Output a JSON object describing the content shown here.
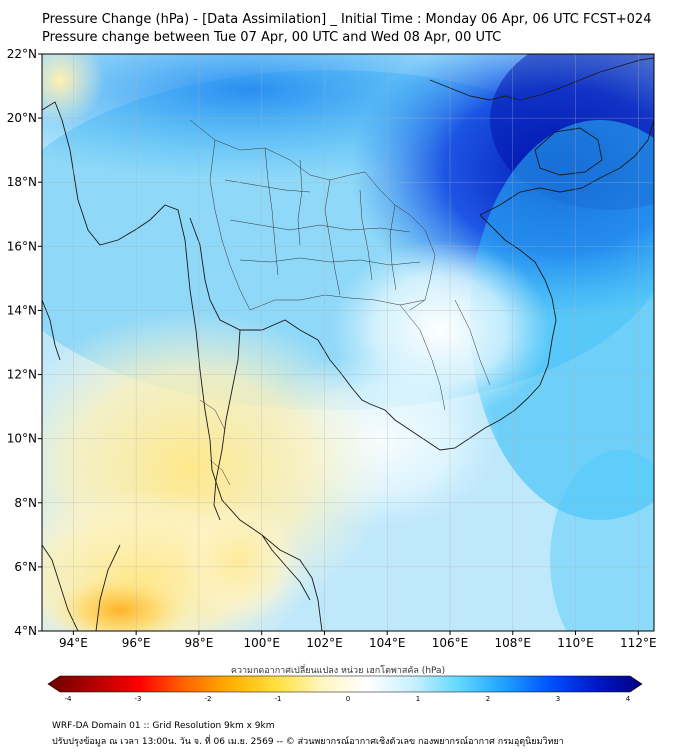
{
  "title_line1": "Pressure Change (hPa) - [Data Assimilation] _ Initial Time : Monday 06 Apr, 06 UTC FCST+024",
  "title_line2": "Pressure change between Tue 07 Apr, 00 UTC and Wed 08 Apr, 00 UTC",
  "map": {
    "lat_labels": [
      "22°N",
      "20°N",
      "18°N",
      "16°N",
      "14°N",
      "12°N",
      "10°N",
      "8°N",
      "6°N",
      "4°N"
    ],
    "lon_labels": [
      "94°E",
      "96°E",
      "98°E",
      "100°E",
      "102°E",
      "104°E",
      "106°E",
      "108°E",
      "110°E",
      "112°E"
    ],
    "lat_range": [
      4,
      22
    ],
    "lon_range": [
      93,
      112.5
    ],
    "grid": true
  },
  "colorbar": {
    "label": "ความกดอากาศเปลี่ยนแปลง หน่วย เฮกโตพาสคัล (hPa)",
    "ticks": [
      "-4",
      "-3",
      "-2",
      "-1",
      "0",
      "1",
      "2",
      "3",
      "4"
    ],
    "range": [
      -4,
      4
    ],
    "colors": [
      "#6b0000",
      "#b30000",
      "#ff0000",
      "#ff6600",
      "#ffb000",
      "#ffe040",
      "#fff6c0",
      "#ffffff",
      "#c8f0ff",
      "#60d8ff",
      "#1ea0ff",
      "#0050ff",
      "#0018c8",
      "#000080"
    ]
  },
  "footer_line1": "WRF-DA Domain 01 :: Grid Resolution 9km x 9km",
  "footer_line2": "ปรับปรุงข้อมูล ณ เวลา 13:00น. วัน จ. ที่ 06 เม.ย. 2569 -- © ส่วนพยากรณ์อากาศเชิงตัวเลข กองพยากรณ์อากาศ กรมอุตุนิยมวิทยา"
}
